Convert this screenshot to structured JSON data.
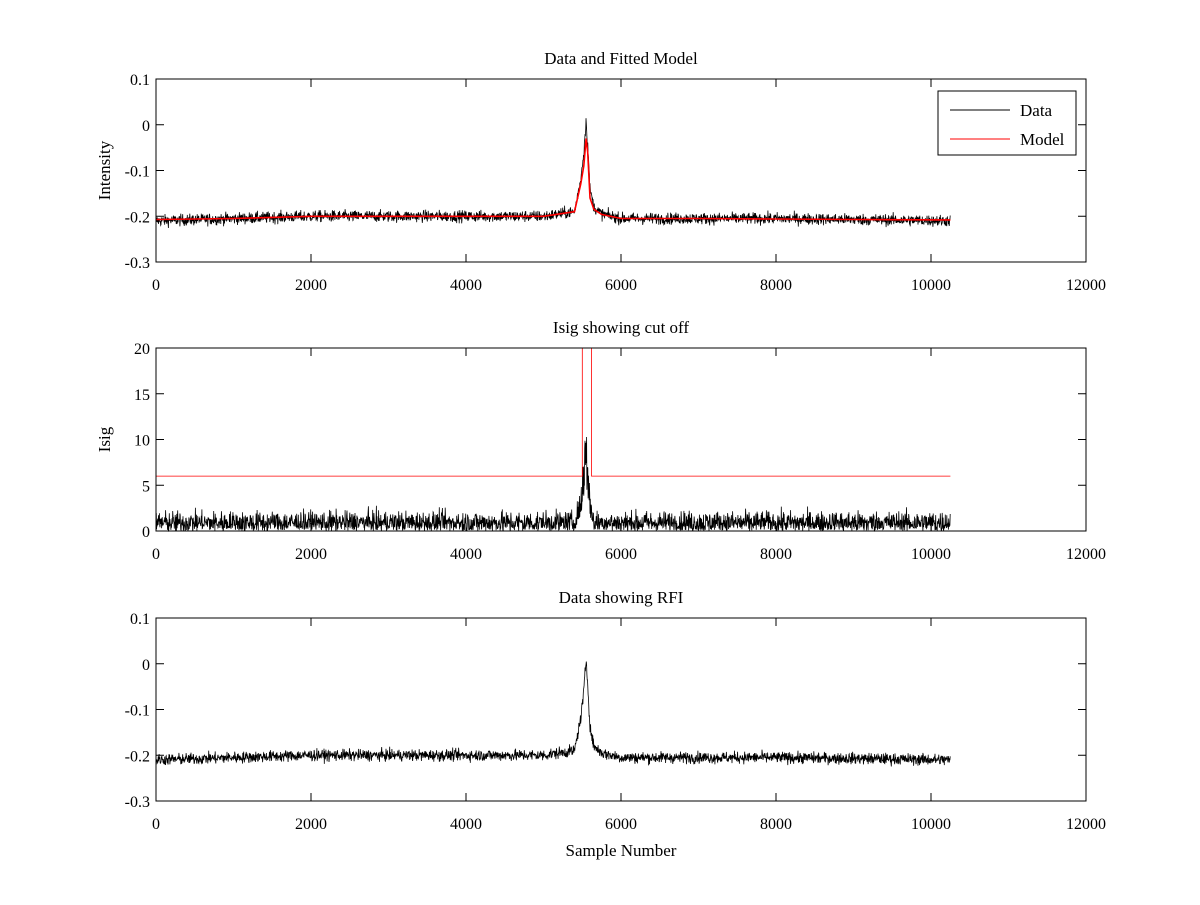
{
  "chart_data": [
    {
      "type": "line",
      "title": "Data and Fitted Model",
      "xlabel": "",
      "ylabel": "Intensity",
      "xlim": [
        0,
        12000
      ],
      "ylim": [
        -0.3,
        0.1
      ],
      "xticks": [
        "0",
        "2000",
        "4000",
        "6000",
        "8000",
        "10000",
        "12000"
      ],
      "yticks": [
        "-0.3",
        "-0.2",
        "-0.1",
        "0",
        "0.1"
      ],
      "legend_position": "top-right",
      "series": [
        {
          "name": "Data",
          "color": "#000000",
          "kind": "noisy",
          "x": [
            0,
            1000,
            2000,
            3000,
            4000,
            5000,
            5400,
            5480,
            5520,
            5550,
            5570,
            5600,
            5650,
            5750,
            6000,
            7000,
            8000,
            9000,
            10250
          ],
          "y": [
            -0.21,
            -0.205,
            -0.2,
            -0.2,
            -0.2,
            -0.2,
            -0.19,
            -0.12,
            -0.06,
            0.01,
            -0.04,
            -0.14,
            -0.18,
            -0.195,
            -0.205,
            -0.205,
            -0.205,
            -0.207,
            -0.21
          ],
          "noise": 0.012
        },
        {
          "name": "Model",
          "color": "#ff0000",
          "kind": "smooth",
          "x": [
            0,
            1000,
            2000,
            3000,
            4000,
            5000,
            5400,
            5480,
            5520,
            5550,
            5570,
            5600,
            5650,
            5750,
            6000,
            7000,
            8000,
            9000,
            10250
          ],
          "y": [
            -0.207,
            -0.205,
            -0.2,
            -0.2,
            -0.2,
            -0.2,
            -0.19,
            -0.13,
            -0.09,
            -0.03,
            -0.06,
            -0.16,
            -0.185,
            -0.196,
            -0.205,
            -0.205,
            -0.206,
            -0.207,
            -0.208
          ]
        }
      ]
    },
    {
      "type": "line",
      "title": "Isig showing cut off",
      "xlabel": "",
      "ylabel": "Isig",
      "xlim": [
        0,
        12000
      ],
      "ylim": [
        0,
        20
      ],
      "xticks": [
        "0",
        "2000",
        "4000",
        "6000",
        "8000",
        "10000",
        "12000"
      ],
      "yticks": [
        "0",
        "5",
        "10",
        "15",
        "20"
      ],
      "series": [
        {
          "color": "#000000",
          "kind": "positive-noise",
          "x": [
            0,
            5400,
            5480,
            5520,
            5550,
            5570,
            5600,
            5650,
            10250
          ],
          "y": [
            0.9,
            0.9,
            3,
            7,
            9,
            7,
            3,
            0.9,
            0.9
          ],
          "noise": 1.0
        },
        {
          "color": "#ff0000",
          "kind": "step",
          "x": [
            0,
            5500,
            5500,
            5620,
            5620,
            10250
          ],
          "y": [
            6,
            6,
            20,
            20,
            6,
            6
          ]
        }
      ]
    },
    {
      "type": "line",
      "title": "Data showing RFI",
      "xlabel": "Sample Number",
      "ylabel": "",
      "xlim": [
        0,
        12000
      ],
      "ylim": [
        -0.3,
        0.1
      ],
      "xticks": [
        "0",
        "2000",
        "4000",
        "6000",
        "8000",
        "10000",
        "12000"
      ],
      "yticks": [
        "-0.3",
        "-0.2",
        "-0.1",
        "0",
        "0.1"
      ],
      "series": [
        {
          "color": "#000000",
          "kind": "noisy",
          "x": [
            0,
            1000,
            2000,
            3000,
            4000,
            5000,
            5400,
            5480,
            5520,
            5550,
            5570,
            5600,
            5650,
            5750,
            6000,
            7000,
            8000,
            9000,
            10250
          ],
          "y": [
            -0.21,
            -0.205,
            -0.2,
            -0.2,
            -0.2,
            -0.2,
            -0.19,
            -0.12,
            -0.06,
            0.01,
            -0.04,
            -0.14,
            -0.18,
            -0.195,
            -0.205,
            -0.205,
            -0.205,
            -0.207,
            -0.21
          ],
          "noise": 0.012
        }
      ]
    }
  ]
}
